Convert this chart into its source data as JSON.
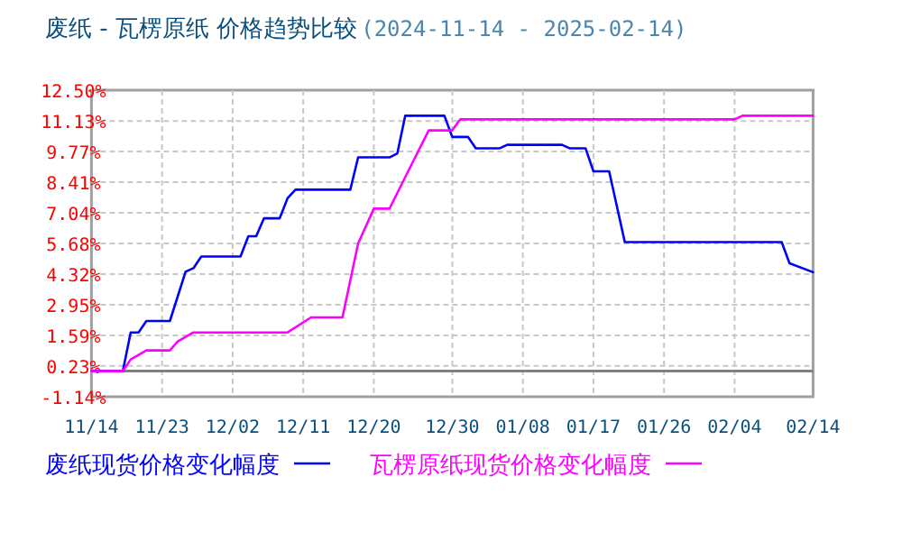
{
  "chart_data": {
    "type": "line",
    "title": "废纸 - 瓦楞原纸 价格趋势比较",
    "subtitle": "(2024-11-14 - 2025-02-14)",
    "xlim": [
      "2024-11-14",
      "2025-02-14"
    ],
    "xticks": [
      {
        "value": "2024-11-14",
        "label": "11/14"
      },
      {
        "value": "2024-11-23",
        "label": "11/23"
      },
      {
        "value": "2024-12-02",
        "label": "12/02"
      },
      {
        "value": "2024-12-11",
        "label": "12/11"
      },
      {
        "value": "2024-12-20",
        "label": "12/20"
      },
      {
        "value": "2024-12-30",
        "label": "12/30"
      },
      {
        "value": "2025-01-08",
        "label": "01/08"
      },
      {
        "value": "2025-01-17",
        "label": "01/17"
      },
      {
        "value": "2025-01-26",
        "label": "01/26"
      },
      {
        "value": "2025-02-04",
        "label": "02/04"
      },
      {
        "value": "2025-02-14",
        "label": "02/14"
      }
    ],
    "ylim": [
      -1.14,
      12.5
    ],
    "yticks": [
      {
        "value": -1.14,
        "label": "-1.14%"
      },
      {
        "value": 0.23,
        "label": "0.23%"
      },
      {
        "value": 1.59,
        "label": "1.59%"
      },
      {
        "value": 2.95,
        "label": "2.95%"
      },
      {
        "value": 4.32,
        "label": "4.32%"
      },
      {
        "value": 5.68,
        "label": "5.68%"
      },
      {
        "value": 7.04,
        "label": "7.04%"
      },
      {
        "value": 8.41,
        "label": "8.41%"
      },
      {
        "value": 9.77,
        "label": "9.77%"
      },
      {
        "value": 11.13,
        "label": "11.13%"
      },
      {
        "value": 12.5,
        "label": "12.50%"
      }
    ],
    "grid": true,
    "legend": "bottom",
    "marker": "none",
    "line_style": "solid",
    "ref_lines": [
      {
        "axis": "y",
        "value": 0,
        "color": "#808080"
      }
    ],
    "series": [
      {
        "name": "废纸现货价格变化幅度",
        "color": "#0000ff",
        "x": [
          "2024-11-14",
          "2024-11-18",
          "2024-11-19",
          "2024-11-20",
          "2024-11-21",
          "2024-11-24",
          "2024-11-26",
          "2024-11-27",
          "2024-11-28",
          "2024-12-03",
          "2024-12-04",
          "2024-12-05",
          "2024-12-06",
          "2024-12-08",
          "2024-12-09",
          "2024-12-10",
          "2024-12-17",
          "2024-12-18",
          "2024-12-22",
          "2024-12-23",
          "2024-12-24",
          "2024-12-29",
          "2024-12-30",
          "2025-01-01",
          "2025-01-02",
          "2025-01-05",
          "2025-01-06",
          "2025-01-13",
          "2025-01-14",
          "2025-01-16",
          "2025-01-17",
          "2025-01-19",
          "2025-01-21",
          "2025-02-10",
          "2025-02-11",
          "2025-02-14"
        ],
        "values": [
          0,
          0,
          1.72,
          1.72,
          2.23,
          2.23,
          4.42,
          4.58,
          5.1,
          5.1,
          6.0,
          6.0,
          6.8,
          6.8,
          7.69,
          8.07,
          8.07,
          9.51,
          9.51,
          9.69,
          11.36,
          11.36,
          10.42,
          10.42,
          9.91,
          9.91,
          10.07,
          10.07,
          9.91,
          9.91,
          8.89,
          8.89,
          5.74,
          5.74,
          4.8,
          4.4
        ]
      },
      {
        "name": "瓦楞原纸现货价格变化幅度",
        "color": "#ff00ff",
        "x": [
          "2024-11-14",
          "2024-11-18",
          "2024-11-19",
          "2024-11-21",
          "2024-11-24",
          "2024-11-25",
          "2024-11-27",
          "2024-12-09",
          "2024-12-12",
          "2024-12-16",
          "2024-12-18",
          "2024-12-20",
          "2024-12-22",
          "2024-12-24",
          "2024-12-27",
          "2024-12-30",
          "2024-12-31",
          "2025-02-04",
          "2025-02-05",
          "2025-02-14"
        ],
        "values": [
          0,
          0,
          0.52,
          0.92,
          0.92,
          1.32,
          1.72,
          1.72,
          2.39,
          2.39,
          5.68,
          7.23,
          7.23,
          8.63,
          10.71,
          10.71,
          11.2,
          11.2,
          11.36,
          11.36
        ]
      }
    ]
  }
}
